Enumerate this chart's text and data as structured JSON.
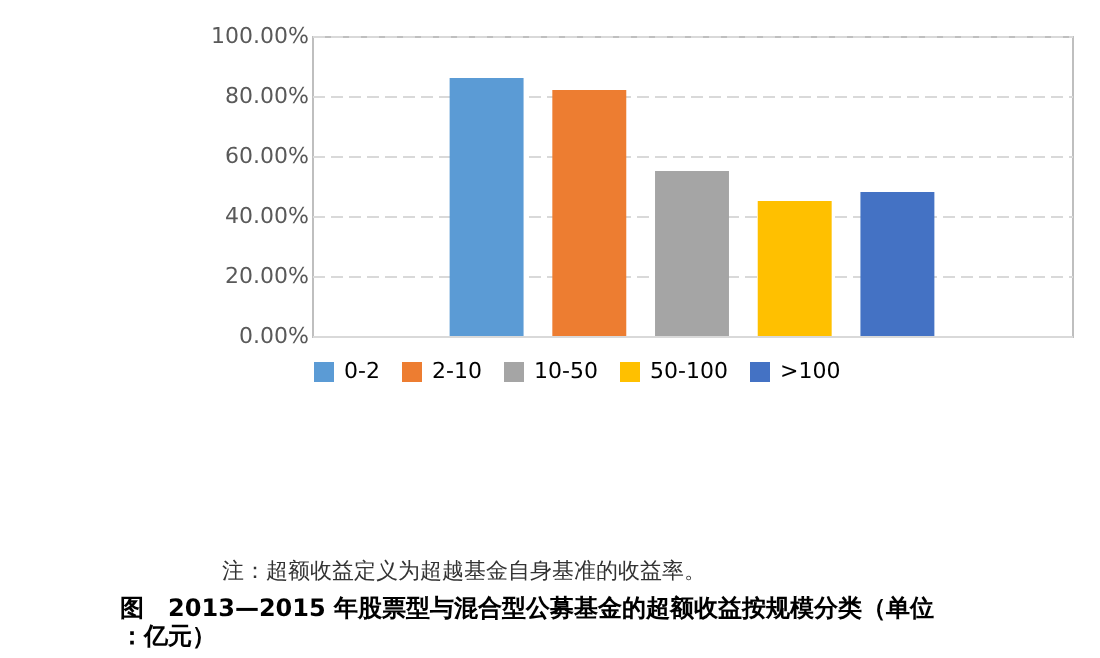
{
  "chart_data": {
    "type": "bar",
    "title": "图　2013—2015 年股票型与混合型公募基金的超额收益按规模分类（单位：亿元）",
    "categories": [
      null
    ],
    "series": [
      {
        "name": "0-2",
        "color": "#5b9bd5",
        "values": [
          86
        ]
      },
      {
        "name": "2-10",
        "color": "#ed7d31",
        "values": [
          82
        ]
      },
      {
        "name": "10-50",
        "color": "#a5a5a5",
        "values": [
          55
        ]
      },
      {
        "name": "50-100",
        "color": "#ffc000",
        "values": [
          45
        ]
      },
      {
        "name": ">100",
        "color": "#4472c4",
        "values": [
          48
        ]
      }
    ],
    "ylim": [
      0,
      100
    ],
    "yticks": [
      {
        "value": 0,
        "label": "0.00%"
      },
      {
        "value": 20,
        "label": "20.00%"
      },
      {
        "value": 40,
        "label": "40.00%"
      },
      {
        "value": 60,
        "label": "60.00%"
      },
      {
        "value": 80,
        "label": "80.00%"
      },
      {
        "value": 100,
        "label": "100.00%"
      }
    ],
    "grid": "y",
    "legend": "bottom",
    "tick_labels": "y",
    "annotations": [
      "注：超额收益定义为超越基金自身基准的收益率。"
    ]
  }
}
